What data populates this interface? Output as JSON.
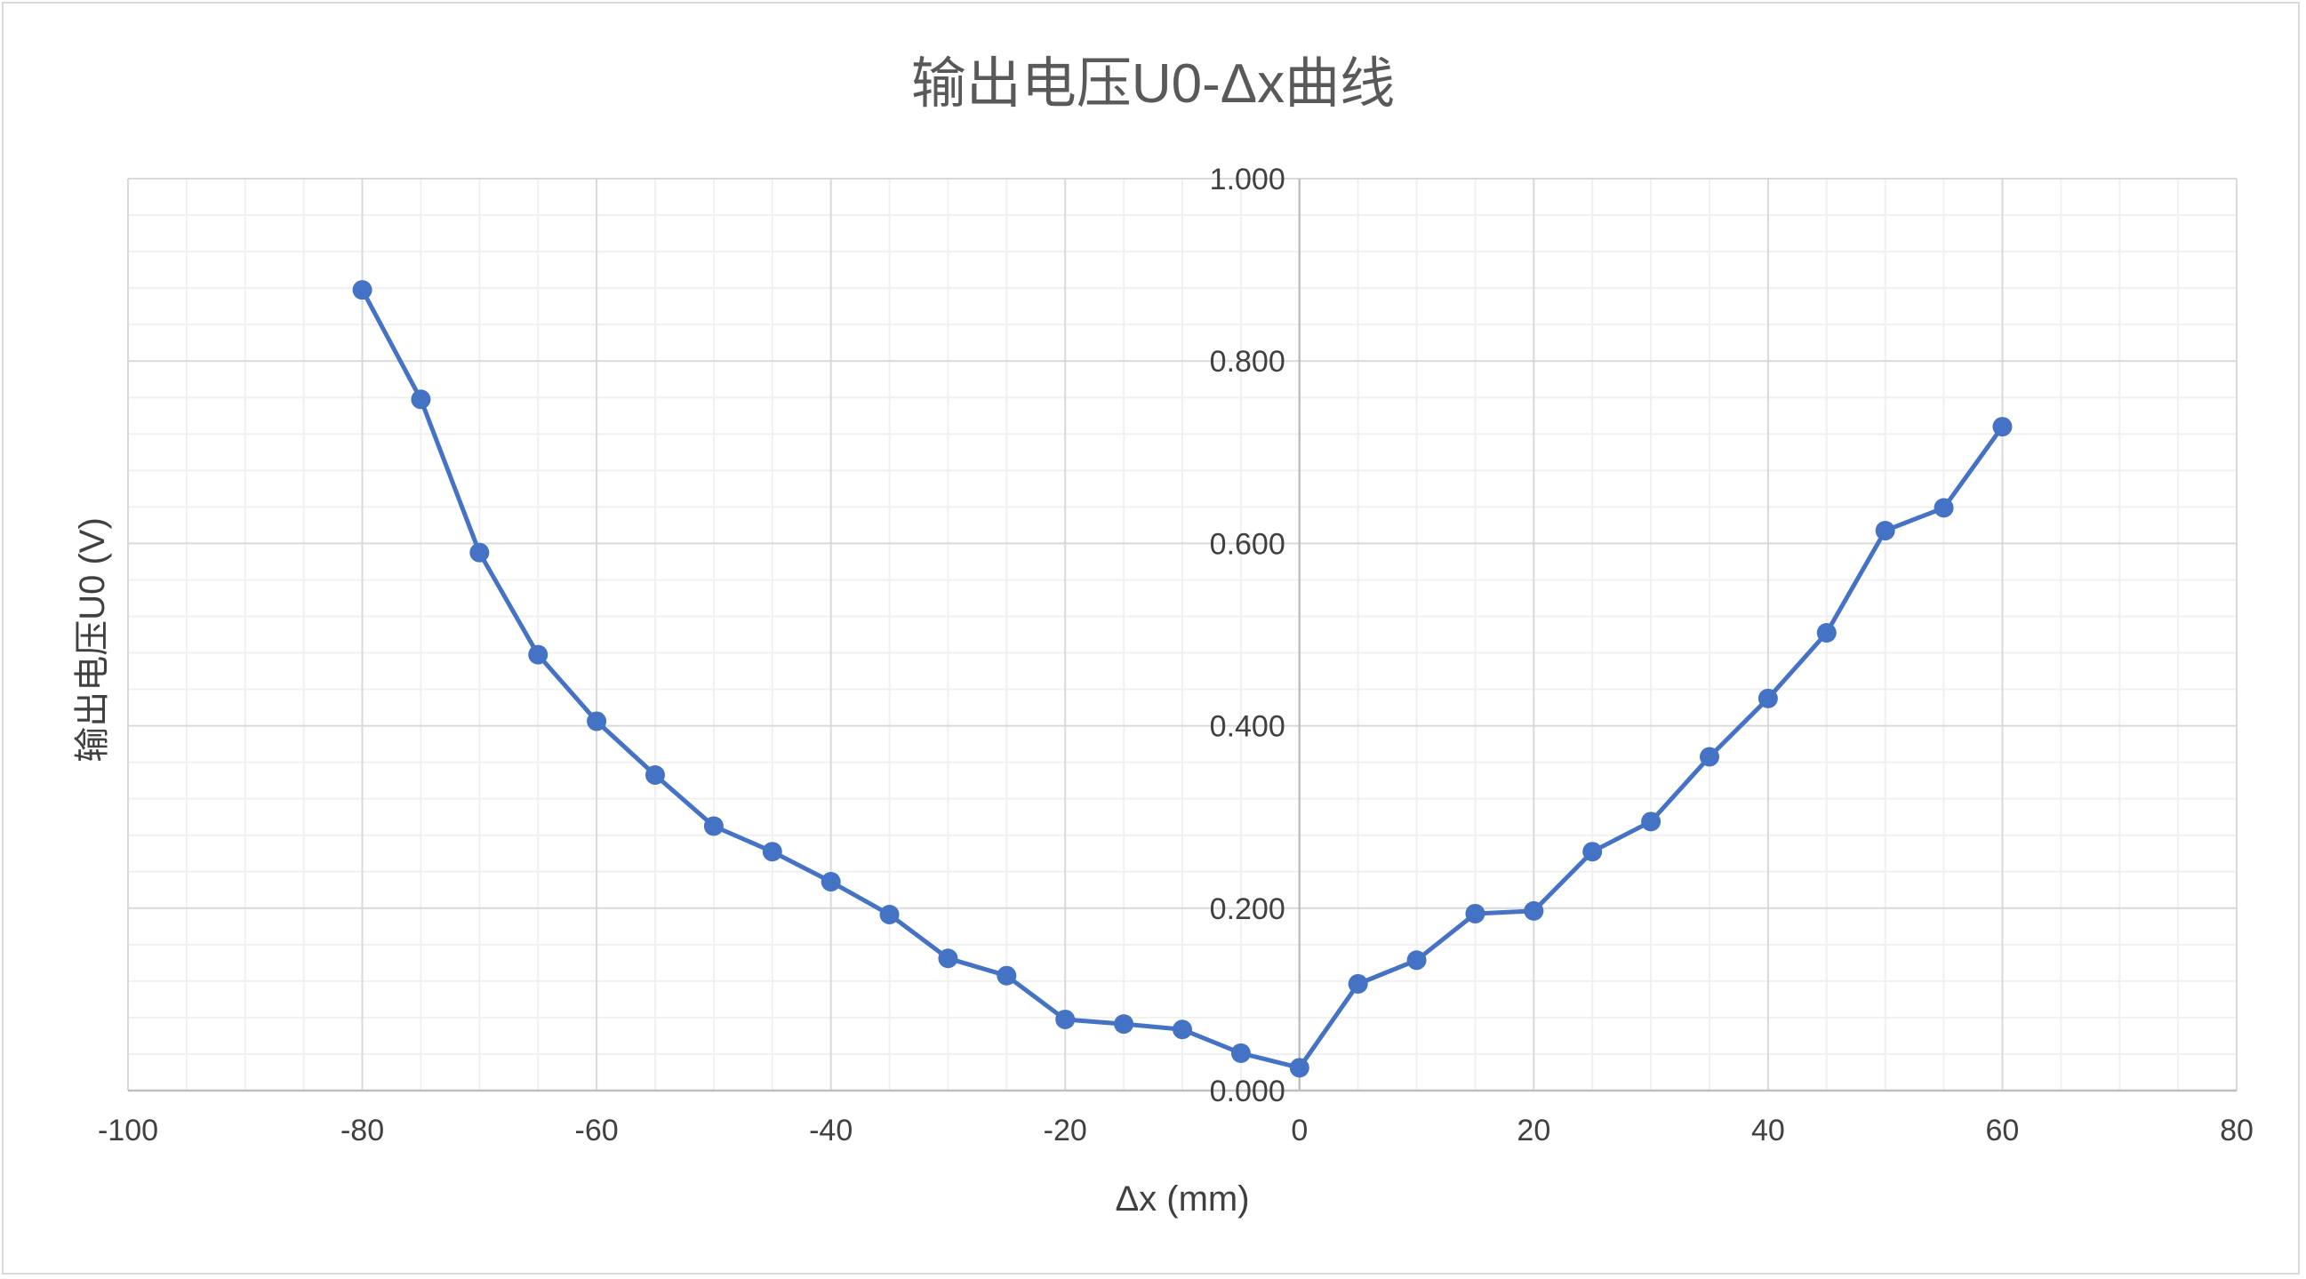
{
  "chart_data": {
    "type": "scatter",
    "title": "输出电压U0-Δx曲线",
    "xlabel": "Δx (mm)",
    "ylabel": "输出电压U0 (V)",
    "xlim": [
      -100,
      80
    ],
    "ylim": [
      0,
      1.0
    ],
    "x_ticks": [
      "-100",
      "-80",
      "-60",
      "-40",
      "-20",
      "0",
      "20",
      "40",
      "60",
      "80"
    ],
    "y_ticks": [
      "0.000",
      "0.200",
      "0.400",
      "0.600",
      "0.800",
      "1.000"
    ],
    "grid": true,
    "legend": "none",
    "series": [
      {
        "color": "#4472c4",
        "marker": "circle",
        "line": "straight",
        "points": [
          [
            -80,
            0.878
          ],
          [
            -75,
            0.758
          ],
          [
            -70,
            0.59
          ],
          [
            -65,
            0.478
          ],
          [
            -60,
            0.405
          ],
          [
            -55,
            0.346
          ],
          [
            -50,
            0.29
          ],
          [
            -45,
            0.262
          ],
          [
            -40,
            0.229
          ],
          [
            -35,
            0.193
          ],
          [
            -30,
            0.145
          ],
          [
            -25,
            0.126
          ],
          [
            -20,
            0.078
          ],
          [
            -15,
            0.073
          ],
          [
            -10,
            0.067
          ],
          [
            -5,
            0.041
          ],
          [
            0,
            0.025
          ],
          [
            5,
            0.117
          ],
          [
            10,
            0.143
          ],
          [
            15,
            0.194
          ],
          [
            20,
            0.197
          ],
          [
            25,
            0.262
          ],
          [
            30,
            0.295
          ],
          [
            35,
            0.366
          ],
          [
            40,
            0.43
          ],
          [
            45,
            0.502
          ],
          [
            50,
            0.614
          ],
          [
            55,
            0.639
          ],
          [
            60,
            0.728
          ]
        ]
      }
    ]
  }
}
